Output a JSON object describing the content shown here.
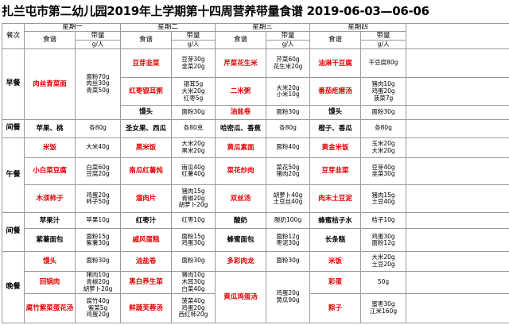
{
  "title": "扎兰屯市第二幼儿园2019年上学期第十四周营养带量食谱 2019-06-03—06-06",
  "header": {
    "col0": "餐次",
    "days": [
      "星期一",
      "星期二",
      "星期三",
      "星期四"
    ],
    "recipe": "食谱",
    "amount": "带量",
    "unit": "g/人"
  },
  "meals": [
    "早餐",
    "间餐",
    "午餐",
    "间餐",
    "晚餐"
  ],
  "rows": [
    {
      "mon_d": "肉丝青菜面",
      "mon_q": "面粉70g\n肉丝30g\n青菜50g",
      "tue_d": "豆芽韭菜",
      "tue_q": "豆芽30g\n韭菜20g",
      "wed_d": "芹菜花生米",
      "wed_q": "芹菜60g\n花生米20g",
      "thu_d": "油淋干豆腐",
      "thu_q": "干豆腐80g"
    },
    {
      "tue_d": "红枣银耳粥",
      "tue_q": "银耳5g\n大米20g\n红枣5g",
      "wed_d": "二米粥",
      "wed_q": "大米20g\n小米10g",
      "thu_d": "番茄疙瘩汤",
      "thu_q": "猪肉10g\n鸡蛋20g\n菠菜7g"
    },
    {
      "tue_d": "馒头",
      "tue_q": "面粉30g",
      "wed_d": "油盐卷",
      "wed_q": "面粉30g",
      "thu_d": "馒头",
      "thu_q": "面粉30g"
    },
    {
      "mon_d": "苹果、桃",
      "mon_q": "各80g",
      "tue_d": "圣女果、西瓜",
      "tue_q": "各80克",
      "wed_d": "哈密瓜、香蕉",
      "wed_q": "各80g",
      "thu_d": "橙子、香瓜",
      "thu_q": "各80g"
    },
    {
      "mon_d": "米饭",
      "mon_q": "大米40g",
      "tue_d": "黑米饭",
      "tue_q": "大米20g\n黑米20g",
      "wed_d": "黄瓜素面",
      "wed_q": "面粉40g",
      "thu_d": "黄金米饭",
      "thu_q": "玉米20g\n大米20g"
    },
    {
      "mon_d": "小白菜豆腐",
      "mon_q": "白菜60g\n豆腐20g",
      "tue_d": "南瓜红薯炖",
      "tue_q": "南瓜40g\n红薯40g",
      "wed_d": "菜花炒肉",
      "wed_q": "菜花50g\n猪肉20g",
      "thu_d": "豆芽韭菜",
      "thu_q": "豆芽40g\n韭菜30g"
    },
    {
      "mon_d": "木须柿子",
      "mon_q": "鸡蛋20g\n柿子50g",
      "tue_d": "溜肉片",
      "tue_q": "猪肉15g\n青椒20g\n胡萝卜20g",
      "wed_d": "双丝汤",
      "wed_q": "胡萝卜40g\n土豆丝40g",
      "thu_d": "肉末土豆泥",
      "thu_q": "猪肉15g\n土豆40g"
    },
    {
      "mon_d": "苹果汁",
      "mon_q": "苹果10g",
      "tue_d": "红枣汁",
      "tue_q": "红枣10g",
      "wed_d": "酸奶",
      "wed_q": "酸奶100g",
      "thu_d": "蜂蜜桔子水",
      "thu_q": "桔子10g"
    },
    {
      "mon_d": "紫薯面包",
      "mon_q": "面粉15g\n紫薯30g",
      "tue_d": "戚风蛋糕",
      "tue_q": "面粉15g\n鸡蛋30g",
      "wed_d": "蜂蜜面包",
      "wed_q": "面粉12g\n枣泥30g",
      "thu_d": "长条糕",
      "thu_q": "鸡蛋30g\n面粉12g"
    },
    {
      "mon_d": "馒头",
      "mon_q": "面粉30g",
      "tue_d": "油盐卷",
      "tue_q": "面粉30g",
      "wed_d": "多彩肉龙",
      "wed_q": "面粉30g",
      "thu_d": "米饭",
      "thu_q": "大米20g\n土豆20g"
    },
    {
      "mon_d": "回锅肉",
      "mon_q": "猪肉10g\n青椒20g\n胡萝卜20g",
      "tue_d": "黑白养生菜",
      "tue_q": "猪肉10g\n木耳30g\n白菜40g",
      "thu_d": "彩蛋",
      "thu_q": "50g"
    },
    {
      "mon_d": "腐竹紫菜蛋花汤",
      "mon_q": "腐竹40g\n紫菜5g\n鸡蛋20g",
      "tue_d": "鲜蔬芙蓉汤",
      "tue_q": "菠菜40g\n鸡蛋20g\n西红柿20g",
      "wed_d": "黄瓜鸡蛋汤",
      "wed_q": "鸡蛋20g\n黄瓜90g",
      "thu_d": "粽子",
      "thu_q": "蜜枣30g\n江米160g"
    }
  ]
}
